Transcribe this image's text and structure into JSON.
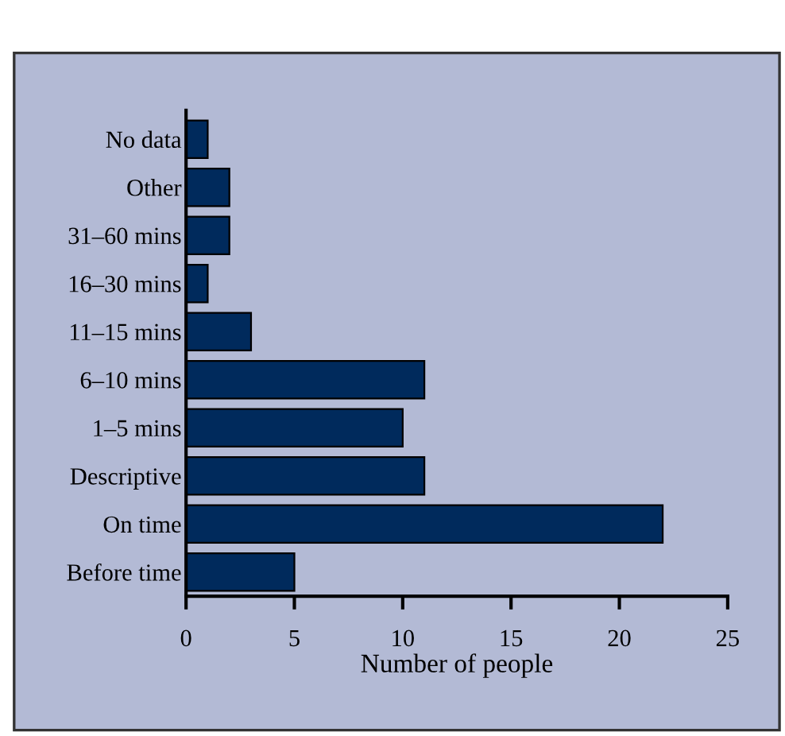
{
  "chart_data": {
    "type": "bar",
    "orientation": "horizontal",
    "xlabel": "Number of people",
    "categories": [
      "No data",
      "Other",
      "31–60 mins",
      "16–30 mins",
      "11–15 mins",
      "6–10 mins",
      "1–5 mins",
      "Descriptive",
      "On time",
      "Before time"
    ],
    "values": [
      1,
      2,
      2,
      1,
      3,
      11,
      10,
      11,
      22,
      5
    ],
    "color": "#002a5c",
    "xlim": [
      0,
      25
    ],
    "xticks": [
      0,
      5,
      10,
      15,
      20,
      25
    ],
    "grid": false,
    "legend": false
  }
}
